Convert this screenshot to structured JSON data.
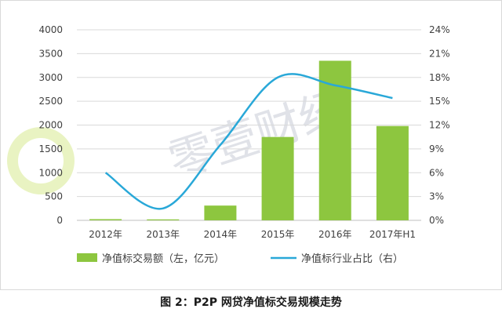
{
  "chart_data": {
    "type": "bar",
    "categories": [
      "2012年",
      "2013年",
      "2014年",
      "2015年",
      "2016年",
      "2017年H1"
    ],
    "series": [
      {
        "name": "净值标交易额（左，亿元）",
        "type": "bar",
        "axis": "left",
        "color": "#8dc63f",
        "values": [
          25,
          20,
          310,
          1750,
          3350,
          1980
        ]
      },
      {
        "name": "净值标行业占比（右）",
        "type": "line",
        "axis": "right",
        "color": "#29a8d8",
        "values": [
          6.0,
          1.5,
          9.5,
          18.0,
          17.0,
          15.4
        ]
      }
    ],
    "y_left": {
      "min": 0,
      "max": 4000,
      "ticks": [
        "0",
        "500",
        "1000",
        "1500",
        "2000",
        "2500",
        "3000",
        "3500",
        "4000"
      ]
    },
    "y_right": {
      "min": 0,
      "max": 24,
      "ticks": [
        "0%",
        "3%",
        "6%",
        "9%",
        "12%",
        "15%",
        "18%",
        "21%",
        "24%"
      ]
    },
    "grid": true,
    "legend_position": "bottom"
  },
  "caption": "图 2：P2P 网贷净值标交易规模走势",
  "watermark": "零壹财经"
}
